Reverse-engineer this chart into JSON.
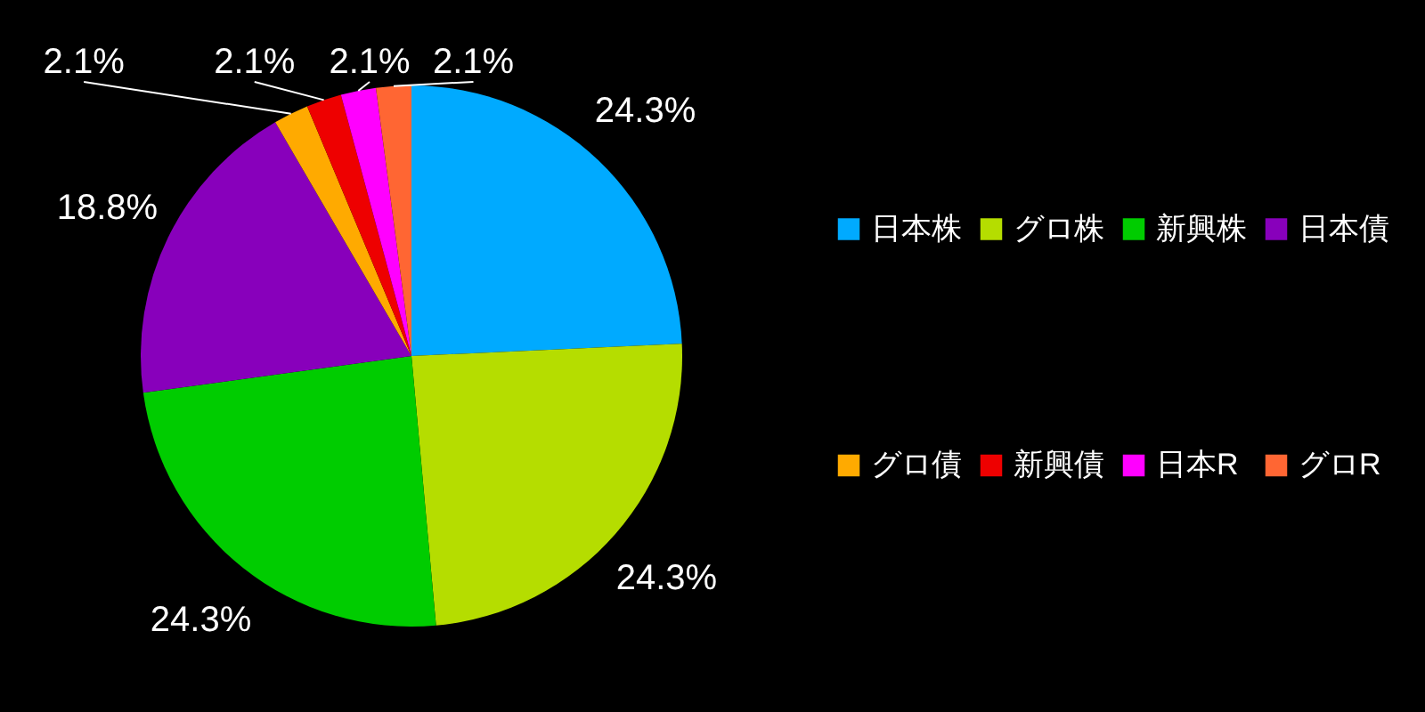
{
  "chart_data": {
    "type": "pie",
    "categories": [
      "日本株",
      "グロ株",
      "新興株",
      "日本債",
      "グロ債",
      "新興債",
      "日本R",
      "グロR"
    ],
    "values": [
      24.3,
      24.3,
      24.3,
      18.8,
      2.1,
      2.1,
      2.1,
      2.1
    ],
    "colors": [
      "#00aaff",
      "#b5dd00",
      "#00cc00",
      "#8800bb",
      "#ffaa00",
      "#ee0000",
      "#ff00ff",
      "#ff6633"
    ],
    "value_labels": [
      "24.3%",
      "24.3%",
      "24.3%",
      "18.8%",
      "2.1%",
      "2.1%",
      "2.1%",
      "2.1%"
    ],
    "legend": "right"
  }
}
